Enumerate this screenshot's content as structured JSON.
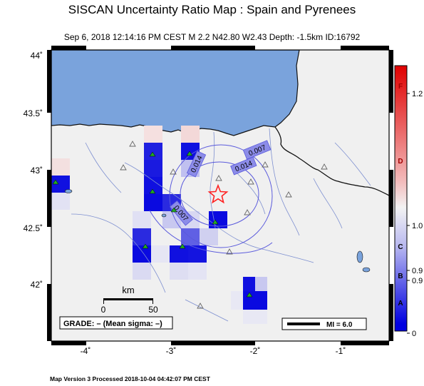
{
  "title": "SISCAN Uncertainty Ratio Map : Spain and Pyrenees",
  "subtitle": "Sep  6, 2018 12:14:16 PM CEST   M 2.2   N42.80 W2.43   Depth: -1.5km   ID:16792",
  "footer": "Map Version 3 Processed 2018-10-04 04:42:07 PM CEST",
  "axes": {
    "lat_labels": [
      "44˚",
      "43.5˚",
      "43˚",
      "42.5˚",
      "42˚"
    ],
    "lon_labels": [
      "-4˚",
      "-3˚",
      "-2˚",
      "-1˚"
    ]
  },
  "contours": [
    "0.007",
    "0.014",
    "0.014",
    "0.007"
  ],
  "scale_bar": {
    "unit": "km",
    "min": "0",
    "max": "50"
  },
  "grade": "GRADE: – (Mean sigma: –)",
  "legend_mi": "MI = 6.0",
  "colorbar": {
    "grades": [
      "F",
      "D",
      "C",
      "B",
      "A"
    ],
    "values": [
      "1.2",
      "1.0",
      "0.9",
      "0.9",
      "0"
    ]
  },
  "colors": {
    "ocean": "#7aa3dc",
    "land": "#f0f0f0",
    "epicenter": "#ff2020",
    "station": "#22aa22"
  },
  "epicenter": {
    "lat": 42.8,
    "lon": -2.43
  }
}
